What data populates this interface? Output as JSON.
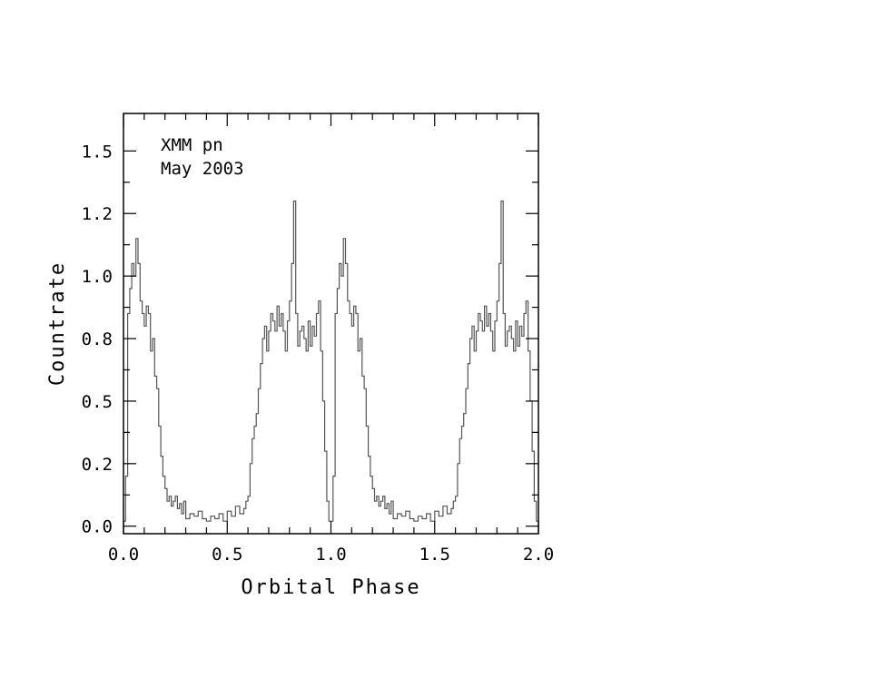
{
  "chart_data": {
    "type": "line",
    "title": "",
    "xlabel": "Orbital Phase",
    "ylabel": "Countrate",
    "xlim": [
      0.0,
      2.0
    ],
    "ylim": [
      -0.03,
      1.65
    ],
    "xticks": [
      0.0,
      0.5,
      1.0,
      1.5,
      2.0
    ],
    "xtick_labels": [
      "0.0",
      "0.5",
      "1.0",
      "1.5",
      "2.0"
    ],
    "yticks": [
      0.0,
      0.25,
      0.5,
      0.75,
      1.0,
      1.25,
      1.5
    ],
    "ytick_labels": [
      "0.0",
      "0.2",
      "0.5",
      "0.8",
      "1.0",
      "1.2",
      "1.5"
    ],
    "annotations": [
      "XMM pn",
      "May 2003"
    ],
    "grid": false,
    "line_color": "#555555",
    "series": [
      {
        "x": [
          0.0,
          0.01,
          0.02,
          0.03,
          0.04,
          0.05,
          0.06,
          0.07,
          0.08,
          0.09,
          0.1,
          0.11,
          0.12,
          0.13,
          0.14,
          0.15,
          0.16,
          0.17,
          0.18,
          0.19,
          0.2,
          0.21,
          0.22,
          0.23,
          0.24,
          0.25,
          0.26,
          0.27,
          0.28,
          0.29,
          0.3,
          0.32,
          0.34,
          0.36,
          0.38,
          0.4,
          0.42,
          0.44,
          0.46,
          0.48,
          0.5,
          0.52,
          0.54,
          0.56,
          0.58,
          0.59,
          0.6,
          0.61,
          0.62,
          0.63,
          0.64,
          0.65,
          0.66,
          0.67,
          0.68,
          0.69,
          0.7,
          0.71,
          0.72,
          0.73,
          0.74,
          0.75,
          0.76,
          0.77,
          0.78,
          0.79,
          0.8,
          0.81,
          0.82,
          0.83,
          0.84,
          0.85,
          0.86,
          0.87,
          0.88,
          0.89,
          0.9,
          0.91,
          0.92,
          0.93,
          0.94,
          0.95,
          0.96,
          0.97,
          0.98,
          0.99
        ],
        "y": [
          0.02,
          0.2,
          0.85,
          0.95,
          1.05,
          1.0,
          1.15,
          1.05,
          0.9,
          0.85,
          0.8,
          0.88,
          0.85,
          0.7,
          0.75,
          0.6,
          0.55,
          0.4,
          0.28,
          0.2,
          0.15,
          0.1,
          0.12,
          0.08,
          0.1,
          0.12,
          0.07,
          0.09,
          0.05,
          0.1,
          0.03,
          0.05,
          0.04,
          0.06,
          0.03,
          0.02,
          0.04,
          0.03,
          0.05,
          0.02,
          0.06,
          0.04,
          0.08,
          0.05,
          0.07,
          0.1,
          0.12,
          0.25,
          0.35,
          0.4,
          0.45,
          0.55,
          0.65,
          0.75,
          0.8,
          0.7,
          0.78,
          0.85,
          0.82,
          0.78,
          0.88,
          0.8,
          0.85,
          0.78,
          0.7,
          0.82,
          0.9,
          1.05,
          1.3,
          0.85,
          0.72,
          0.78,
          0.8,
          0.75,
          0.7,
          0.82,
          0.72,
          0.8,
          0.76,
          0.85,
          0.9,
          0.7,
          0.5,
          0.3,
          0.1,
          0.02
        ]
      }
    ]
  }
}
